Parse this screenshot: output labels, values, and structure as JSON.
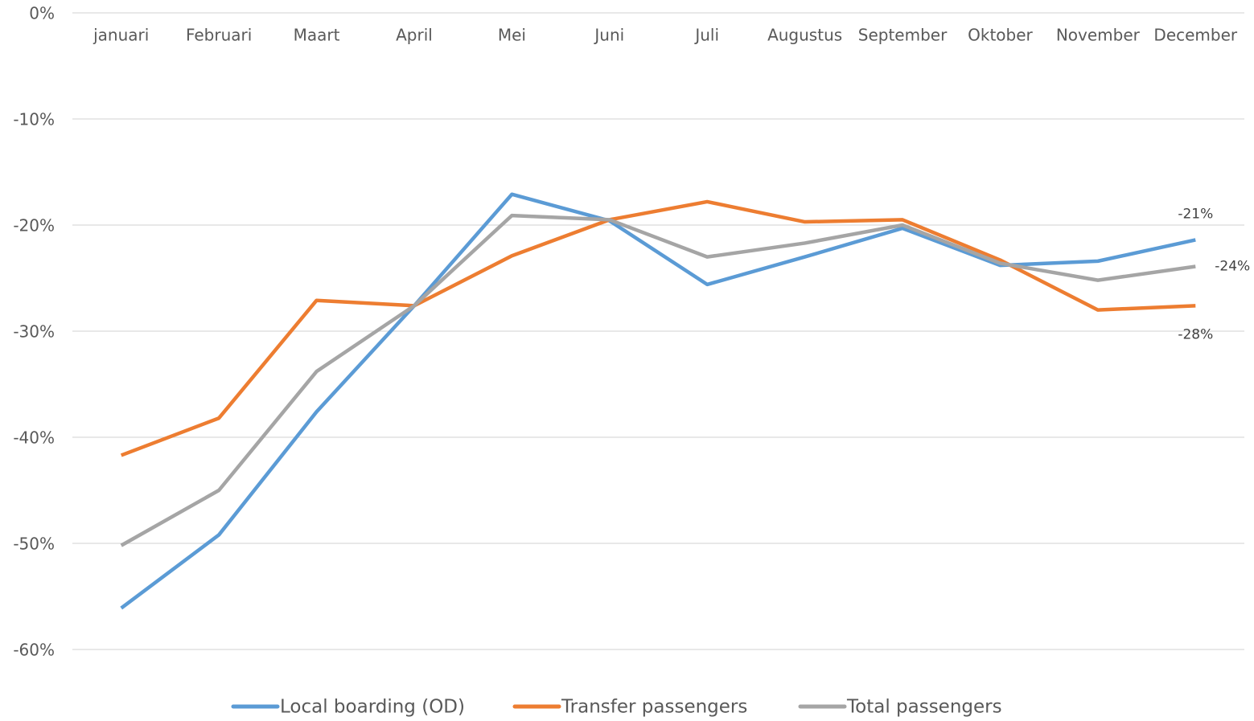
{
  "chart_data": {
    "type": "line",
    "categories": [
      "januari",
      "Februari",
      "Maart",
      "April",
      "Mei",
      "Juni",
      "Juli",
      "Augustus",
      "September",
      "Oktober",
      "November",
      "December"
    ],
    "series": [
      {
        "name": "Local boarding (OD)",
        "color": "#5b9bd5",
        "values": [
          -56.1,
          -49.2,
          -37.6,
          -27.6,
          -17.1,
          -19.6,
          -25.6,
          -23.0,
          -20.3,
          -23.8,
          -23.4,
          -21.4
        ],
        "value_labels": [
          null,
          null,
          null,
          null,
          null,
          null,
          null,
          null,
          null,
          null,
          null,
          "-21%"
        ]
      },
      {
        "name": "Transfer passengers",
        "color": "#ed7d31",
        "values": [
          -41.7,
          -38.2,
          -27.1,
          -27.6,
          -22.9,
          -19.5,
          -17.8,
          -19.7,
          -19.5,
          -23.3,
          -28.0,
          -27.6
        ],
        "value_labels": [
          null,
          null,
          null,
          null,
          null,
          null,
          null,
          null,
          null,
          null,
          null,
          "-28%"
        ]
      },
      {
        "name": "Total passengers",
        "color": "#a5a5a5",
        "values": [
          -50.2,
          -45.0,
          -33.8,
          -27.6,
          -19.1,
          -19.5,
          -23.0,
          -21.7,
          -20.0,
          -23.6,
          -25.2,
          -23.9
        ],
        "value_labels": [
          null,
          null,
          null,
          null,
          null,
          null,
          null,
          null,
          null,
          null,
          null,
          "-24%"
        ]
      }
    ],
    "ylim": [
      -60,
      0
    ],
    "yticks": [
      {
        "value": 0,
        "label": "0%"
      },
      {
        "value": -10,
        "label": "-10%"
      },
      {
        "value": -20,
        "label": "-20%"
      },
      {
        "value": -30,
        "label": "-30%"
      },
      {
        "value": -40,
        "label": "-40%"
      },
      {
        "value": -50,
        "label": "-50%"
      },
      {
        "value": -60,
        "label": "-60%"
      }
    ],
    "grid": true,
    "legend": "bottom"
  }
}
